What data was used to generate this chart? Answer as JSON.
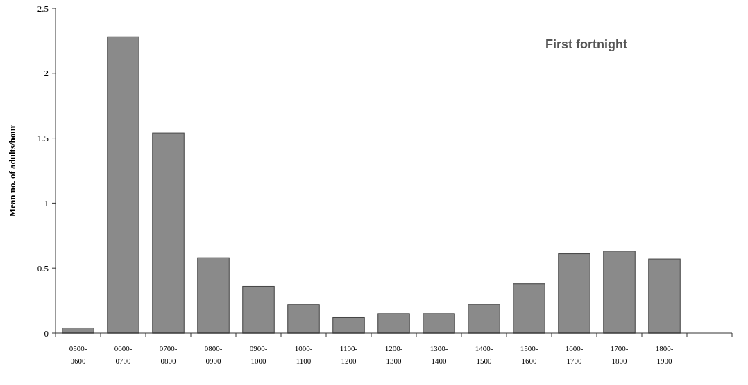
{
  "chart_data": {
    "type": "bar",
    "title": "First fortnight",
    "ylabel": "Mean no. of adults/hour",
    "categories": [
      "0500-0600",
      "0600-0700",
      "0700-0800",
      "0800-0900",
      "0900-1000",
      "1000-1100",
      "1100-1200",
      "1200-1300",
      "1300-1400",
      "1400-1500",
      "1500-1600",
      "1600-1700",
      "1700-1800",
      "1800-1900",
      null
    ],
    "values": [
      0.04,
      2.28,
      1.54,
      0.58,
      0.36,
      0.22,
      0.12,
      0.15,
      0.15,
      0.22,
      0.38,
      0.61,
      0.63,
      0.57,
      null
    ],
    "color": "#8a8a8a",
    "ylim": [
      0,
      2.5
    ],
    "yticks": [
      0,
      0.5,
      1,
      1.5,
      2,
      2.5
    ],
    "grid": false
  }
}
